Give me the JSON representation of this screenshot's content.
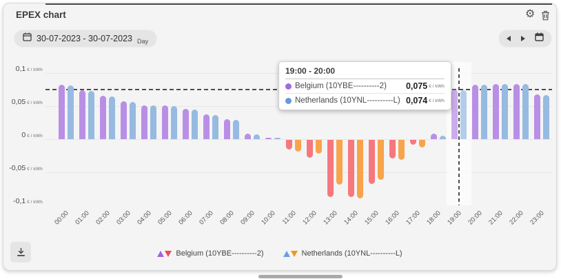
{
  "title": "EPEX chart",
  "toolbar": {
    "date_range": "30-07-2023 - 30-07-2023",
    "granularity": "Day"
  },
  "chart_data": {
    "type": "bar",
    "unit": "€ / kWh",
    "categories": [
      "00:00",
      "01:00",
      "02:00",
      "03:00",
      "04:00",
      "05:00",
      "06:00",
      "07:00",
      "08:00",
      "09:00",
      "10:00",
      "11:00",
      "12:00",
      "13:00",
      "14:00",
      "15:00",
      "16:00",
      "17:00",
      "18:00",
      "19:00",
      "20:00",
      "21:00",
      "22:00",
      "23:00"
    ],
    "series": [
      {
        "name": "Belgium (10YBE----------2)",
        "color_positive": "#b98fe6",
        "color_negative": "#f6787d",
        "values": [
          0.082,
          0.074,
          0.066,
          0.057,
          0.051,
          0.051,
          0.046,
          0.037,
          0.03,
          0.008,
          0.001,
          -0.015,
          -0.027,
          -0.086,
          -0.086,
          -0.067,
          -0.028,
          -0.007,
          0.008,
          0.075,
          0.082,
          0.083,
          0.083,
          0.068
        ]
      },
      {
        "name": "Netherlands (10YNL----------L)",
        "color_positive": "#97bae0",
        "color_negative": "#f8a44c",
        "values": [
          0.081,
          0.073,
          0.065,
          0.056,
          0.051,
          0.05,
          0.045,
          0.036,
          0.029,
          0.007,
          0.001,
          -0.018,
          -0.021,
          -0.068,
          -0.089,
          -0.06,
          -0.03,
          -0.011,
          0.005,
          0.074,
          0.082,
          0.083,
          0.083,
          0.067
        ]
      }
    ],
    "yticks": [
      0.1,
      0.05,
      0,
      -0.05,
      -0.1
    ],
    "ytick_labels": [
      "0,1",
      "0,05",
      "0",
      "-0,05",
      "-0,1"
    ],
    "ylim": [
      -0.1,
      0.105
    ],
    "grid": true,
    "legend_position": "bottom",
    "hovered_category_index": 19,
    "crosshair_value": 0.075
  },
  "tooltip": {
    "title": "19:00 - 20:00",
    "rows": [
      {
        "name": "Belgium (10YBE----------2)",
        "value": "0,075",
        "unit": "€ / kWh",
        "color": "#a06ce0"
      },
      {
        "name": "Netherlands (10YNL----------L)",
        "value": "0,074",
        "unit": "€ / kWh",
        "color": "#649bd8"
      }
    ]
  },
  "legend": {
    "items": [
      {
        "label": "Belgium (10YBE----------2)",
        "up_color": "#a661e0",
        "down_color": "#ea4b5c"
      },
      {
        "label": "Netherlands (10YNL----------L)",
        "up_color": "#69a1e0",
        "down_color": "#f5941f"
      }
    ]
  }
}
